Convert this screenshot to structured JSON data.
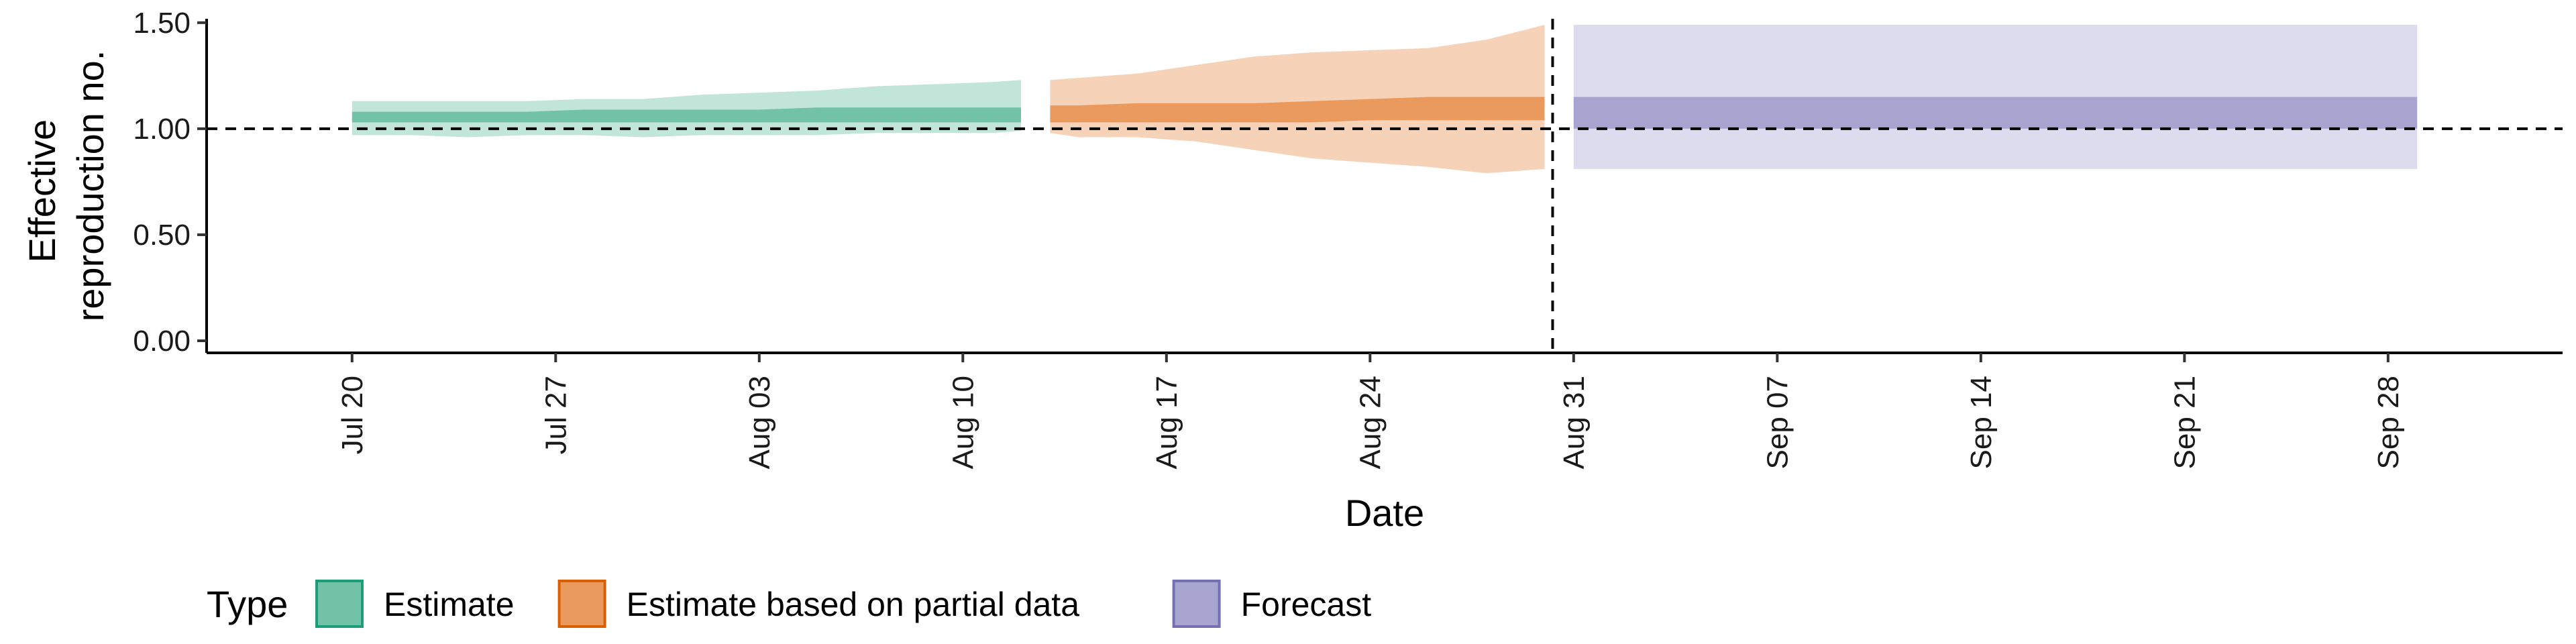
{
  "chart_data": {
    "type": "area",
    "xlabel": "Date",
    "ylabel": [
      "Effective",
      "reproduction no."
    ],
    "ylim": [
      0,
      1.55
    ],
    "xlim": [
      "2020-07-15",
      "2020-10-04"
    ],
    "y_ticks": [
      0.0,
      0.5,
      1.0,
      1.5
    ],
    "y_tick_labels": [
      "0.00",
      "0.50",
      "1.00",
      "1.50"
    ],
    "x_ticks": [
      "2020-07-20",
      "2020-07-27",
      "2020-08-03",
      "2020-08-10",
      "2020-08-17",
      "2020-08-24",
      "2020-08-31",
      "2020-09-07",
      "2020-09-14",
      "2020-09-21",
      "2020-09-28"
    ],
    "x_tick_labels": [
      "Jul 20",
      "Jul 27",
      "Aug 03",
      "Aug 10",
      "Aug 17",
      "Aug 24",
      "Aug 31",
      "Sep 07",
      "Sep 14",
      "Sep 21",
      "Sep 28"
    ],
    "reference_hline": 1.0,
    "reference_vline": "2020-08-30",
    "grid": false,
    "legend": {
      "title": "Type",
      "position": "bottom-left",
      "entries": [
        {
          "label": "Estimate",
          "fill": "#72c2a8",
          "stroke": "#1b9e77"
        },
        {
          "label": "Estimate based on partial data",
          "fill": "#ea9a5d",
          "stroke": "#d95f02"
        },
        {
          "label": "Forecast",
          "fill": "#a8a4d0",
          "stroke": "#7570b3"
        }
      ]
    },
    "series": [
      {
        "name": "Estimate",
        "outer_color": "#c2e5d9",
        "inner_color": "#72c2a8",
        "x": [
          "2020-07-20",
          "2020-07-22",
          "2020-07-24",
          "2020-07-26",
          "2020-07-28",
          "2020-07-30",
          "2020-08-01",
          "2020-08-03",
          "2020-08-05",
          "2020-08-07",
          "2020-08-09",
          "2020-08-11",
          "2020-08-12"
        ],
        "lower_90": [
          0.97,
          0.97,
          0.96,
          0.97,
          0.97,
          0.96,
          0.97,
          0.97,
          0.97,
          0.98,
          0.98,
          0.98,
          0.99
        ],
        "upper_90": [
          1.13,
          1.13,
          1.13,
          1.13,
          1.14,
          1.14,
          1.16,
          1.17,
          1.18,
          1.2,
          1.21,
          1.22,
          1.23
        ],
        "lower_50": [
          1.03,
          1.03,
          1.03,
          1.03,
          1.03,
          1.03,
          1.03,
          1.03,
          1.03,
          1.03,
          1.03,
          1.03,
          1.03
        ],
        "upper_50": [
          1.08,
          1.08,
          1.08,
          1.08,
          1.09,
          1.09,
          1.09,
          1.09,
          1.1,
          1.1,
          1.1,
          1.1,
          1.1
        ]
      },
      {
        "name": "Estimate based on partial data",
        "outer_color": "#f6d2b8",
        "inner_color": "#ea9a5d",
        "x": [
          "2020-08-13",
          "2020-08-14",
          "2020-08-16",
          "2020-08-18",
          "2020-08-20",
          "2020-08-22",
          "2020-08-24",
          "2020-08-26",
          "2020-08-28",
          "2020-08-30"
        ],
        "lower_90": [
          0.98,
          0.96,
          0.96,
          0.94,
          0.9,
          0.86,
          0.84,
          0.82,
          0.79,
          0.81
        ],
        "upper_90": [
          1.23,
          1.24,
          1.26,
          1.3,
          1.34,
          1.36,
          1.37,
          1.38,
          1.42,
          1.49
        ],
        "lower_50": [
          1.03,
          1.03,
          1.03,
          1.03,
          1.03,
          1.03,
          1.04,
          1.04,
          1.04,
          1.04
        ],
        "upper_50": [
          1.11,
          1.11,
          1.12,
          1.12,
          1.12,
          1.13,
          1.14,
          1.15,
          1.15,
          1.15
        ]
      },
      {
        "name": "Forecast",
        "outer_color": "#dcdcee",
        "inner_color": "#a8a4d0",
        "x": [
          "2020-08-31",
          "2020-09-29"
        ],
        "lower_90": [
          0.81,
          0.81
        ],
        "upper_90": [
          1.49,
          1.49
        ],
        "lower_50": [
          1.0,
          1.0
        ],
        "upper_50": [
          1.15,
          1.15
        ]
      }
    ]
  }
}
